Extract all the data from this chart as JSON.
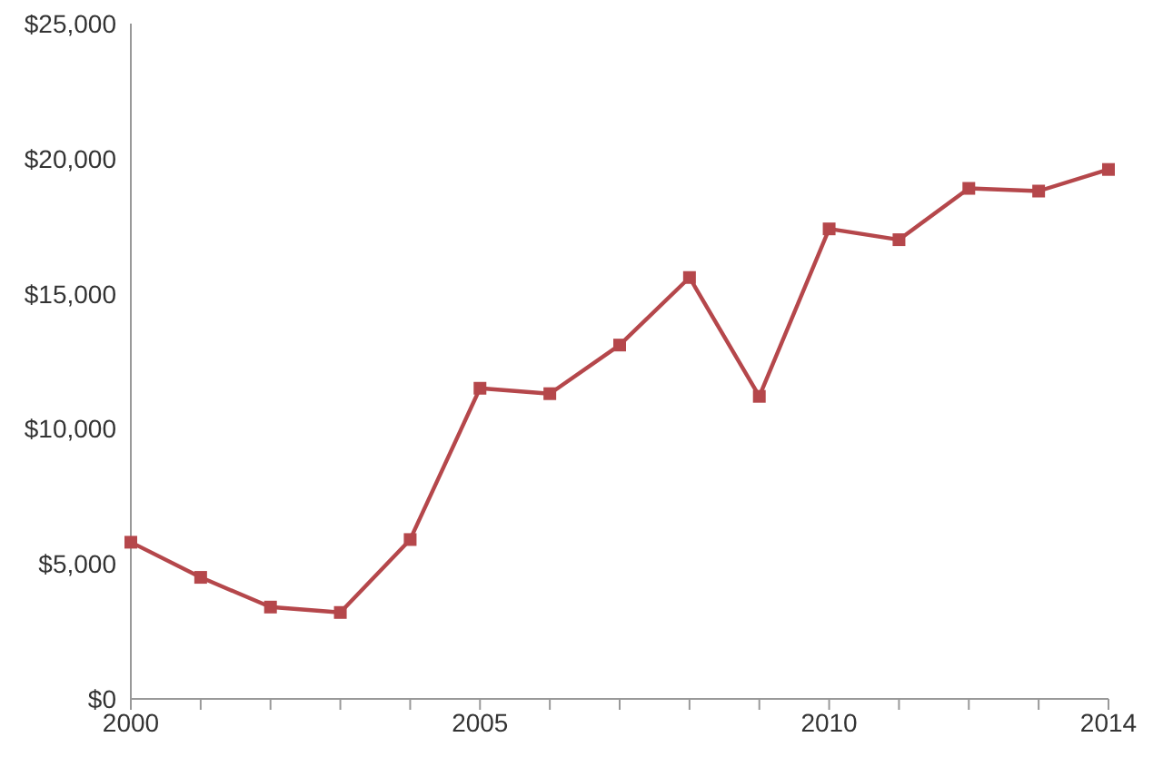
{
  "chart_data": {
    "type": "line",
    "categories": [
      "2000",
      null,
      null,
      null,
      null,
      "2005",
      null,
      null,
      null,
      null,
      "2010",
      null,
      null,
      null,
      "2014"
    ],
    "series": [
      {
        "color": "#b5474b",
        "values": [
          5800,
          4500,
          3400,
          3200,
          5900,
          11500,
          11300,
          13100,
          15600,
          11200,
          17400,
          17000,
          18900,
          18800,
          19600
        ]
      }
    ],
    "ylim": [
      0,
      25000
    ],
    "yticks": [
      {
        "value": 0,
        "label": "$0"
      },
      {
        "value": 5000,
        "label": "$5,000"
      },
      {
        "value": 10000,
        "label": "$10,000"
      },
      {
        "value": 15000,
        "label": "$15,000"
      },
      {
        "value": 20000,
        "label": "$20,000"
      },
      {
        "value": 25000,
        "label": "$25,000"
      }
    ],
    "grid": false,
    "legend": false,
    "marker": "square",
    "line_style": "solid"
  }
}
